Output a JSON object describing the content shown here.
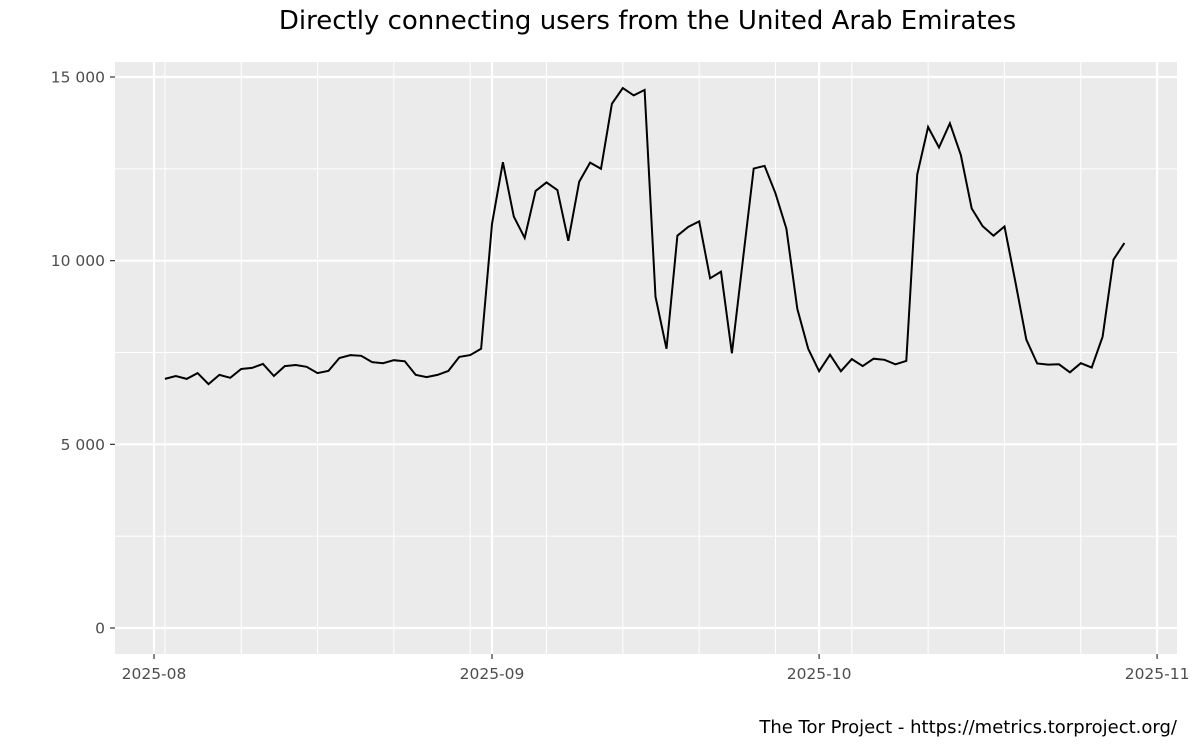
{
  "chart_data": {
    "type": "line",
    "title": "Directly connecting users from the United Arab Emirates",
    "xlabel": "",
    "ylabel": "",
    "caption": "The Tor Project - https://metrics.torproject.org/",
    "x_tick_labels": [
      "2025-08",
      "2025-09",
      "2025-10",
      "2025-11"
    ],
    "y_tick_labels": [
      "0",
      "5 000",
      "10 000",
      "15 000"
    ],
    "y_ticks": [
      0,
      5000,
      10000,
      15000
    ],
    "ylim": [
      -700,
      15400
    ],
    "xlim": [
      "2025-07-27",
      "2025-11-01"
    ],
    "grid": true,
    "legend": "none",
    "line_color": "#000000",
    "panel_background": "#ebebeb",
    "grid_color": "#ffffff",
    "start_date": "2025-08-02",
    "end_date": "2025-10-29",
    "series": [
      {
        "name": "Directly connecting users",
        "values": [
          6780,
          6860,
          6780,
          6940,
          6640,
          6890,
          6810,
          7050,
          7080,
          7190,
          6860,
          7130,
          7160,
          7110,
          6940,
          7000,
          7350,
          7430,
          7410,
          7240,
          7210,
          7290,
          7260,
          6890,
          6830,
          6890,
          7000,
          7380,
          7430,
          7600,
          11000,
          12680,
          11200,
          10620,
          11900,
          12130,
          11920,
          10540,
          12150,
          12670,
          12500,
          14270,
          14700,
          14500,
          14650,
          9020,
          7600,
          10680,
          10920,
          11070,
          9520,
          9700,
          7480,
          10000,
          12510,
          12580,
          11830,
          10870,
          8690,
          7600,
          6990,
          7440,
          6990,
          7320,
          7130,
          7330,
          7300,
          7180,
          7270,
          12340,
          13640,
          13080,
          13740,
          12880,
          11420,
          10940,
          10680,
          10930,
          9420,
          7850,
          7200,
          7170,
          7180,
          6960,
          7210,
          7090,
          7930,
          10030,
          10480
        ]
      }
    ]
  }
}
